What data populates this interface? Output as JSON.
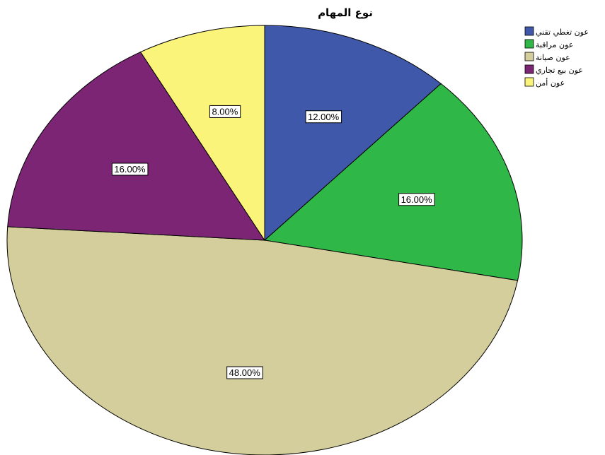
{
  "chart_data": {
    "type": "pie",
    "title": "نوع المهام",
    "start": "12-o-clock",
    "direction": "clockwise",
    "legend_position": "top-right",
    "slices": [
      {
        "label": "عون تغطي تقني",
        "value": 12,
        "display": "12.00%",
        "color": "#3f58aa"
      },
      {
        "label": "عون مراقبة",
        "value": 16,
        "display": "16.00%",
        "color": "#2fb847"
      },
      {
        "label": "عون صيانة",
        "value": 48,
        "display": "48.00%",
        "color": "#d3ce9b"
      },
      {
        "label": "عون بيع تجاري",
        "value": 16,
        "display": "16.00%",
        "color": "#7b2574"
      },
      {
        "label": "عون أمن",
        "value": 8,
        "display": "8.00%",
        "color": "#fbf47a"
      }
    ]
  }
}
